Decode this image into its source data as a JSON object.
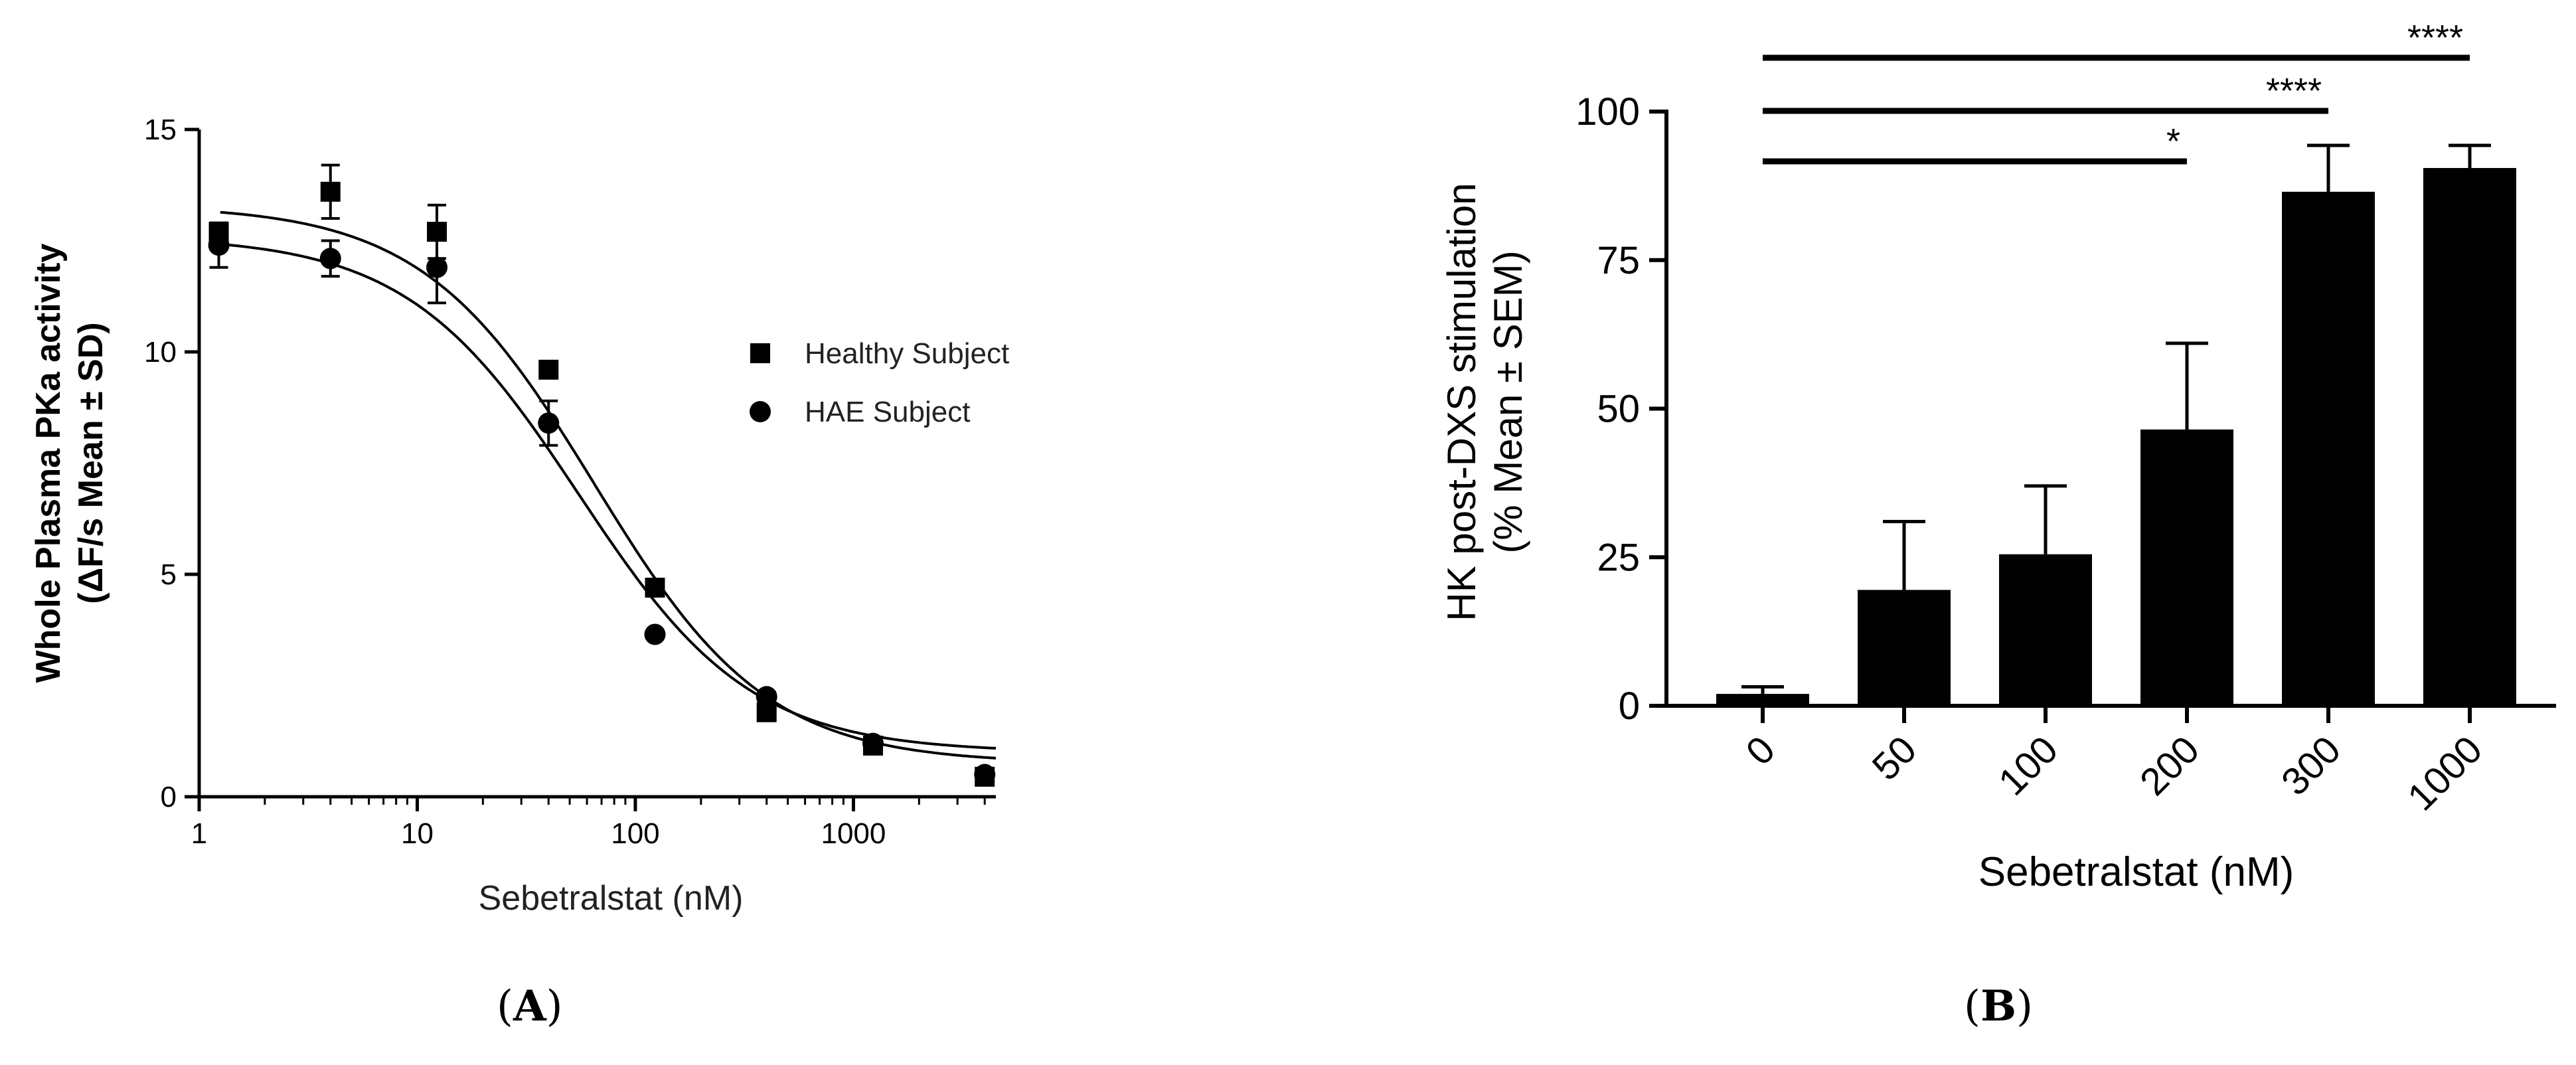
{
  "chart_data": [
    {
      "panel": "A",
      "type": "scatter",
      "xlabel": "Sebetralstat (nM)",
      "ylabel_lines": [
        "Whole Plasma PKa activity",
        "(ΔF/s Mean ± SD)"
      ],
      "x_scale": "log",
      "xlim": [
        1,
        4500
      ],
      "ylim": [
        0,
        15
      ],
      "x_ticks": [
        1,
        10,
        100,
        1000
      ],
      "x_tick_labels": [
        "1",
        "10",
        "100",
        "1000"
      ],
      "y_ticks": [
        0,
        5,
        10,
        15
      ],
      "y_tick_labels": [
        "0",
        "5",
        "10",
        "15"
      ],
      "legend_position": "right",
      "grid": false,
      "series": [
        {
          "name": "Healthy Subject",
          "marker": "square",
          "points": [
            {
              "x": 1.23,
              "y": 12.7,
              "err": 0.2
            },
            {
              "x": 1.23,
              "y": 12.6,
              "err": 0
            },
            {
              "x": 4.0,
              "y": 13.6,
              "err": 0.6
            },
            {
              "x": 12.3,
              "y": 12.7,
              "err": 0.6
            },
            {
              "x": 40.0,
              "y": 9.6,
              "err": 0.1
            },
            {
              "x": 123,
              "y": 4.7,
              "err": 0.1
            },
            {
              "x": 400,
              "y": 1.9,
              "err": 0.1
            },
            {
              "x": 1230,
              "y": 1.15,
              "err": 0
            },
            {
              "x": 4000,
              "y": 0.45,
              "err": 0
            }
          ],
          "fit": {
            "top": 13.3,
            "bottom": 0.75,
            "ic50": 65,
            "hill": 1.1
          }
        },
        {
          "name": "HAE Subject",
          "marker": "circle",
          "points": [
            {
              "x": 1.23,
              "y": 12.4,
              "err": 0.5
            },
            {
              "x": 4.0,
              "y": 12.1,
              "err": 0.4
            },
            {
              "x": 12.3,
              "y": 11.9,
              "err": 0.8
            },
            {
              "x": 40.0,
              "y": 8.4,
              "err": 0.5
            },
            {
              "x": 123,
              "y": 3.65,
              "err": 0
            },
            {
              "x": 400,
              "y": 2.25,
              "err": 0.1
            },
            {
              "x": 1230,
              "y": 1.2,
              "err": 0
            },
            {
              "x": 4000,
              "y": 0.5,
              "err": 0
            }
          ],
          "fit": {
            "top": 12.6,
            "bottom": 1.0,
            "ic50": 55,
            "hill": 1.1
          }
        }
      ]
    },
    {
      "panel": "B",
      "type": "bar",
      "xlabel": "Sebetralstat (nM)",
      "ylabel_lines": [
        "HK post-DXS stimulation",
        "(% Mean ± SEM)"
      ],
      "ylim": [
        0,
        100
      ],
      "y_ticks": [
        0,
        25,
        50,
        75,
        100
      ],
      "y_tick_labels": [
        "0",
        "25",
        "50",
        "75",
        "100"
      ],
      "categories": [
        "0",
        "50",
        "100",
        "200",
        "300",
        "1000"
      ],
      "values": [
        2,
        19.5,
        25.5,
        46.5,
        86.5,
        90.5
      ],
      "errors": [
        1.2,
        11.5,
        11.5,
        14.5,
        7.8,
        3.8
      ],
      "grid": false,
      "significance": [
        {
          "from": "0",
          "to": "200",
          "label": "*"
        },
        {
          "from": "0",
          "to": "300",
          "label": "****"
        },
        {
          "from": "0",
          "to": "1000",
          "label": "****"
        }
      ]
    }
  ],
  "labels": {
    "panel_a": {
      "open": "(",
      "letter": "A",
      "close": ")"
    },
    "panel_b": {
      "open": "(",
      "letter": "B",
      "close": ")"
    }
  }
}
